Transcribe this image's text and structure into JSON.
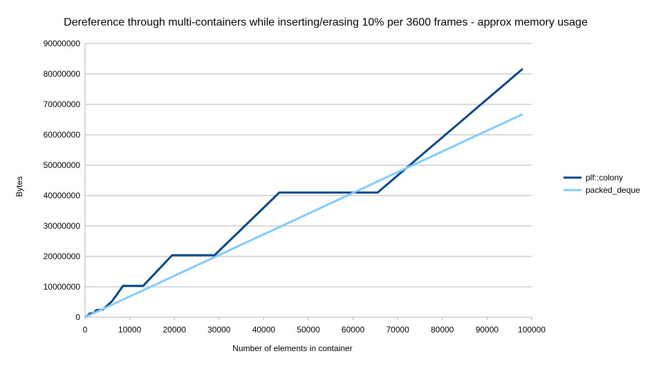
{
  "chart_data": {
    "type": "line",
    "title": "Dereference through multi-containers while inserting/erasing 10% per 3600 frames - approx memory usage",
    "xlabel": "Number of elements in container",
    "ylabel": "Bytes",
    "xlim": [
      0,
      100000
    ],
    "ylim": [
      0,
      90000000
    ],
    "xticks": [
      "0",
      "10000",
      "20000",
      "30000",
      "40000",
      "50000",
      "60000",
      "70000",
      "80000",
      "90000",
      "100000"
    ],
    "yticks": [
      "0",
      "10000000",
      "20000000",
      "30000000",
      "40000000",
      "50000000",
      "60000000",
      "70000000",
      "80000000",
      "90000000"
    ],
    "grid": true,
    "legend_position": "right",
    "series": [
      {
        "name": "plf::colony",
        "color": "#004586",
        "x": [
          0,
          500,
          1000,
          1500,
          2000,
          2500,
          3000,
          4000,
          5000,
          6000,
          7000,
          8500,
          13000,
          19500,
          29000,
          43500,
          65500,
          98000
        ],
        "y": [
          0,
          400000,
          1200000,
          1300000,
          1400000,
          2300000,
          2400000,
          2500000,
          3900000,
          5200000,
          7200000,
          10300000,
          10300000,
          20400000,
          20400000,
          41000000,
          41000000,
          81700000
        ]
      },
      {
        "name": "packed_deque",
        "color": "#83caff",
        "x": [
          0,
          98000
        ],
        "y": [
          0,
          66800000
        ]
      }
    ]
  }
}
